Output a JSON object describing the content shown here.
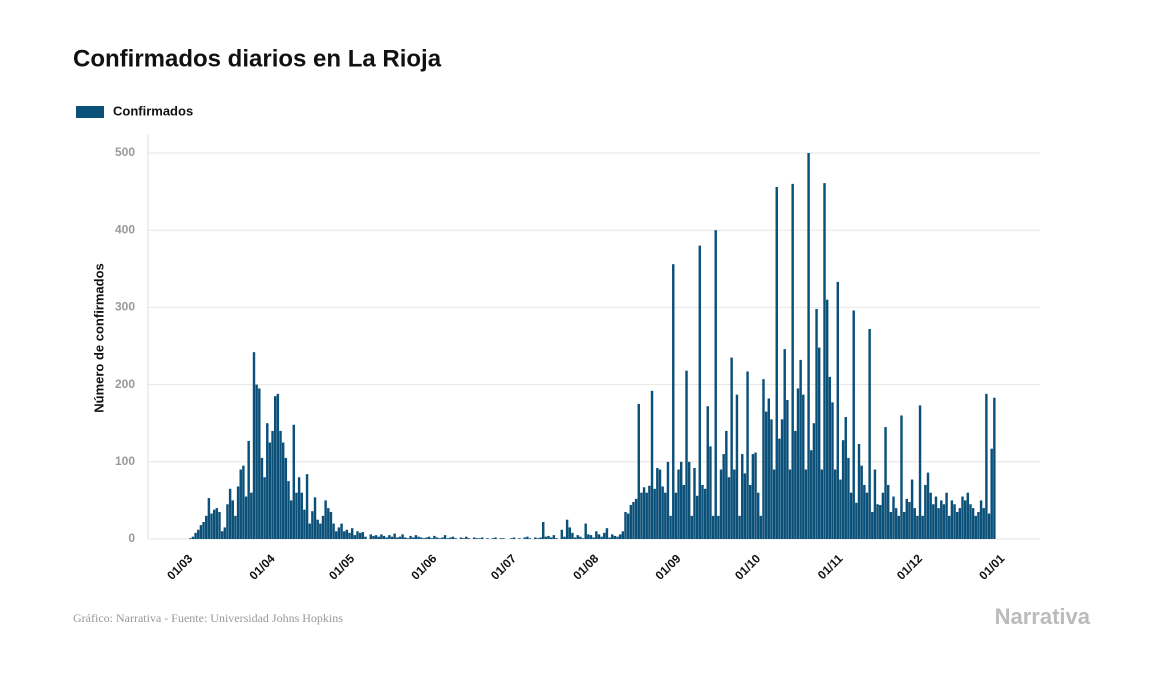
{
  "chart_data": {
    "type": "bar",
    "title": "Confirmados diarios en La Rioja",
    "y_label": "Número de confirmados",
    "categories": [
      "01/03",
      null,
      null,
      null,
      null,
      null,
      null,
      null,
      null,
      null,
      null,
      null,
      null,
      null,
      null,
      null,
      null,
      null,
      null,
      null,
      null,
      null,
      null,
      null,
      null,
      null,
      null,
      null,
      null,
      null,
      null,
      "01/04",
      null,
      null,
      null,
      null,
      null,
      null,
      null,
      null,
      null,
      null,
      null,
      null,
      null,
      null,
      null,
      null,
      null,
      null,
      null,
      null,
      null,
      null,
      null,
      null,
      null,
      null,
      null,
      null,
      null,
      "01/05",
      null,
      null,
      null,
      null,
      null,
      null,
      null,
      null,
      null,
      null,
      null,
      null,
      null,
      null,
      null,
      null,
      null,
      null,
      null,
      null,
      null,
      null,
      null,
      null,
      null,
      null,
      null,
      null,
      null,
      null,
      "01/06",
      null,
      null,
      null,
      null,
      null,
      null,
      null,
      null,
      null,
      null,
      null,
      null,
      null,
      null,
      null,
      null,
      null,
      null,
      null,
      null,
      null,
      null,
      null,
      null,
      null,
      null,
      null,
      null,
      null,
      "01/07",
      null,
      null,
      null,
      null,
      null,
      null,
      null,
      null,
      null,
      null,
      null,
      null,
      null,
      null,
      null,
      null,
      null,
      null,
      null,
      null,
      null,
      null,
      null,
      null,
      null,
      null,
      null,
      null,
      null,
      null,
      "01/08",
      null,
      null,
      null,
      null,
      null,
      null,
      null,
      null,
      null,
      null,
      null,
      null,
      null,
      null,
      null,
      null,
      null,
      null,
      null,
      null,
      null,
      null,
      null,
      null,
      null,
      null,
      null,
      null,
      null,
      null,
      "01/09",
      null,
      null,
      null,
      null,
      null,
      null,
      null,
      null,
      null,
      null,
      null,
      null,
      null,
      null,
      null,
      null,
      null,
      null,
      null,
      null,
      null,
      null,
      null,
      null,
      null,
      null,
      null,
      null,
      null,
      "01/10",
      null,
      null,
      null,
      null,
      null,
      null,
      null,
      null,
      null,
      null,
      null,
      null,
      null,
      null,
      null,
      null,
      null,
      null,
      null,
      null,
      null,
      null,
      null,
      null,
      null,
      null,
      null,
      null,
      null,
      null,
      "01/11",
      null,
      null,
      null,
      null,
      null,
      null,
      null,
      null,
      null,
      null,
      null,
      null,
      null,
      null,
      null,
      null,
      null,
      null,
      null,
      null,
      null,
      null,
      null,
      null,
      null,
      null,
      null,
      null,
      null,
      "01/12",
      null,
      null,
      null,
      null,
      null,
      null,
      null,
      null,
      null,
      null,
      null,
      null,
      null,
      null,
      null,
      null,
      null,
      null,
      null,
      null,
      null,
      null,
      null,
      null,
      null,
      null,
      null,
      null,
      null,
      null,
      "01/01"
    ],
    "series": [
      {
        "name": "Confirmados",
        "color": "#0b5078",
        "values": [
          0,
          0,
          1,
          3,
          8,
          12,
          18,
          22,
          30,
          53,
          33,
          38,
          40,
          35,
          10,
          15,
          45,
          65,
          50,
          30,
          68,
          90,
          95,
          55,
          127,
          60,
          242,
          200,
          195,
          105,
          80,
          150,
          125,
          140,
          185,
          188,
          140,
          125,
          105,
          75,
          50,
          148,
          60,
          80,
          60,
          38,
          84,
          20,
          36,
          54,
          25,
          20,
          30,
          50,
          40,
          35,
          20,
          10,
          15,
          20,
          10,
          12,
          8,
          14,
          5,
          10,
          8,
          9,
          3,
          0,
          6,
          4,
          5,
          3,
          6,
          4,
          2,
          5,
          3,
          7,
          2,
          3,
          6,
          2,
          1,
          4,
          2,
          5,
          3,
          2,
          1,
          2,
          3,
          1,
          4,
          2,
          1,
          2,
          5,
          1,
          2,
          3,
          1,
          0,
          2,
          1,
          3,
          1,
          0,
          2,
          1,
          1,
          2,
          0,
          1,
          0,
          1,
          2,
          0,
          1,
          1,
          0,
          0,
          1,
          2,
          0,
          1,
          0,
          2,
          3,
          1,
          0,
          2,
          1,
          2,
          22,
          3,
          4,
          2,
          5,
          1,
          0,
          12,
          3,
          25,
          15,
          8,
          2,
          5,
          3,
          1,
          20,
          6,
          5,
          2,
          10,
          6,
          3,
          8,
          14,
          2,
          6,
          4,
          3,
          6,
          10,
          35,
          33,
          44,
          48,
          52,
          175,
          60,
          67,
          60,
          69,
          192,
          65,
          92,
          90,
          68,
          60,
          100,
          30,
          356,
          60,
          90,
          100,
          70,
          218,
          100,
          30,
          92,
          56,
          380,
          70,
          65,
          172,
          120,
          30,
          400,
          30,
          90,
          110,
          140,
          80,
          235,
          90,
          187,
          30,
          110,
          85,
          217,
          70,
          110,
          112,
          60,
          30,
          207,
          165,
          182,
          155,
          90,
          456,
          130,
          155,
          246,
          180,
          90,
          460,
          140,
          195,
          232,
          187,
          90,
          500,
          115,
          150,
          298,
          248,
          90,
          461,
          310,
          210,
          177,
          90,
          333,
          77,
          128,
          158,
          105,
          60,
          296,
          47,
          123,
          95,
          70,
          60,
          272,
          35,
          90,
          45,
          44,
          60,
          145,
          70,
          35,
          55,
          40,
          30,
          160,
          35,
          52,
          48,
          77,
          40,
          30,
          173,
          30,
          70,
          86,
          60,
          45,
          55,
          40,
          50,
          45,
          60,
          30,
          50,
          45,
          35,
          40,
          55,
          50,
          60,
          45,
          40,
          30,
          35,
          50,
          40,
          188,
          33,
          117,
          183,
          null
        ]
      }
    ],
    "ylim": [
      0,
      500
    ],
    "yticks": [
      0,
      100,
      200,
      300,
      400,
      500
    ],
    "grid": true
  },
  "footer": {
    "source": "Gráfico: Narrativa - Fuente: Universidad Johns Hopkins",
    "brand": "Narrativa"
  }
}
